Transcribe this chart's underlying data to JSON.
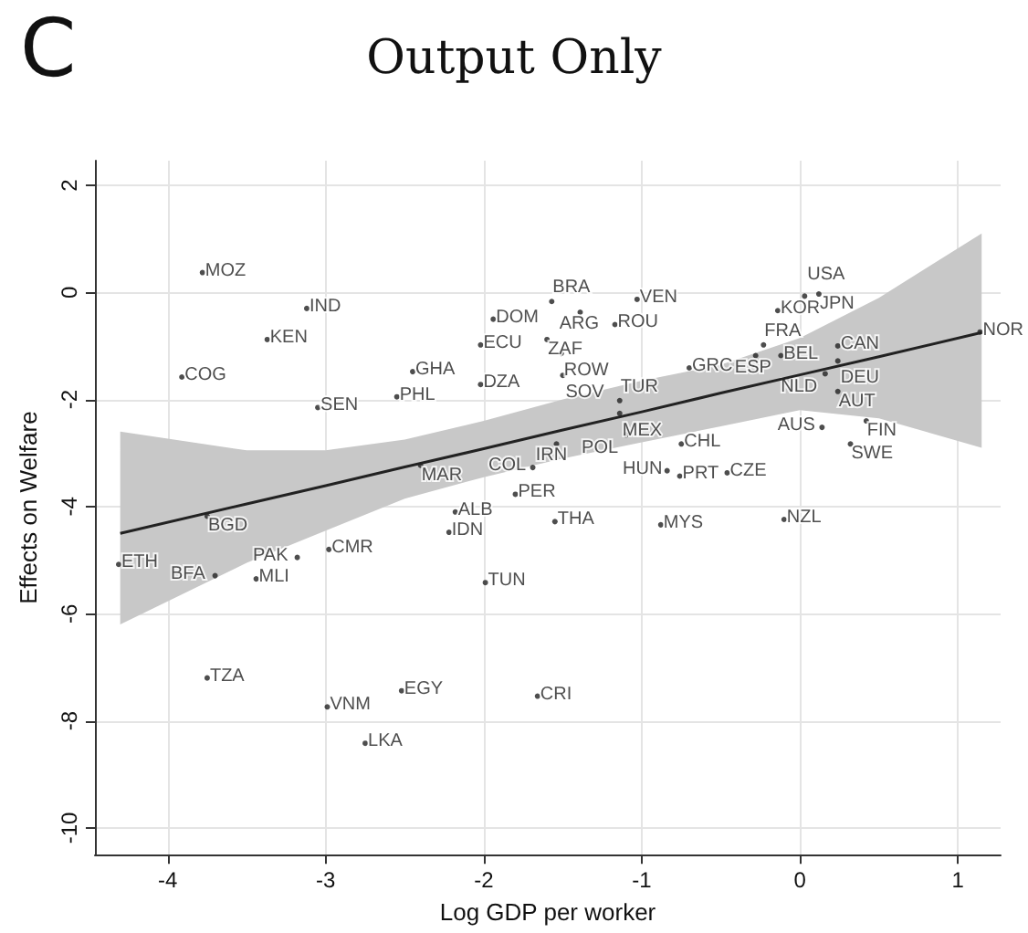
{
  "chart_data": {
    "type": "scatter",
    "title": "Output Only",
    "xlabel": "Log GDP per worker",
    "ylabel": "Effects on Welfare",
    "annotations": [
      "C"
    ],
    "xlim": [
      -4.46,
      1.27
    ],
    "xticks": [
      -4,
      -3,
      -2,
      -1,
      0,
      1
    ],
    "ylim": [
      -10.5,
      2.46
    ],
    "yticks": [
      -10,
      -8,
      -6,
      -4,
      -2,
      0,
      2
    ],
    "grid": true,
    "marker": "circle",
    "series": [
      {
        "type": "scatter",
        "color": "#222222",
        "x": [
          -3.78,
          -3.12,
          -3.37,
          -3.91,
          -3.05,
          -2.45,
          -2.55,
          -2.02,
          -2.02,
          -1.94,
          -1.57,
          -1.39,
          -1.17,
          -1.03,
          -1.6,
          -1.51,
          -1.5,
          -0.7,
          -0.14,
          0.03,
          0.12,
          -0.23,
          -0.28,
          -0.12,
          0.24,
          0.24,
          0.16,
          0.24,
          1.14,
          0.14,
          0.42,
          0.32,
          -0.75,
          -0.84,
          -0.46,
          -0.76,
          -0.88,
          -0.1,
          -1.55,
          -1.8,
          -1.14,
          -1.14,
          -1.1,
          -1.54,
          -1.69,
          -2.4,
          -2.18,
          -2.22,
          -3.18,
          -2.98,
          -3.75,
          -4.31,
          -3.7,
          -3.44,
          -1.99,
          -3.75,
          -2.99,
          -2.52,
          -2.75,
          -1.66
        ],
        "values": [
          0.37,
          -0.3,
          -0.88,
          -1.58,
          -2.15,
          -1.48,
          -1.95,
          -1.72,
          -0.98,
          -0.5,
          -0.17,
          -0.37,
          -0.6,
          -0.13,
          -0.88,
          -1.14,
          -1.55,
          -1.41,
          -0.34,
          -0.07,
          -0.03,
          -0.98,
          -1.18,
          -1.18,
          -1.0,
          -1.28,
          -1.52,
          -1.85,
          -0.74,
          -2.52,
          -2.4,
          -2.83,
          -2.83,
          -3.33,
          -3.37,
          -3.43,
          -4.34,
          -4.24,
          -4.28,
          -3.77,
          -2.02,
          -2.26,
          -2.66,
          -2.83,
          -3.27,
          -3.23,
          -4.1,
          -4.48,
          -4.95,
          -4.8,
          -4.18,
          -5.08,
          -5.29,
          -5.35,
          -5.42,
          -7.2,
          -7.74,
          -7.44,
          -8.42,
          -7.54
        ],
        "value_labels": [
          "MOZ",
          "IND",
          "KEN",
          "COG",
          "SEN",
          "GHA",
          "PHL",
          "DZA",
          "ECU",
          "DOM",
          "BRA",
          "ARG",
          "ROU",
          "VEN",
          "ZAF",
          "ROW",
          "SOV",
          "GRC",
          "KOR",
          "USA",
          "JPN",
          "FRA",
          "ESP",
          "BEL",
          "CAN",
          "DEU",
          "NLD",
          "AUT",
          "NOR",
          "AUS",
          "FIN",
          "SWE",
          "CHL",
          "HUN",
          "CZE",
          "PRT",
          "MYS",
          "NZL",
          "THA",
          "PER",
          "TUR",
          "MEX",
          "POL",
          "IRN",
          "COL",
          "MAR",
          "ALB",
          "IDN",
          "PAK",
          "CMR",
          "BGD",
          "ETH",
          "BFA",
          "MLI",
          "TUN",
          "TZA",
          "VNM",
          "EGY",
          "LKA",
          "CRI"
        ]
      },
      {
        "type": "line",
        "color": "#222222",
        "marker": "none",
        "x": [
          -4.3,
          -3.5,
          -3,
          -2.5,
          -2,
          -1.5,
          -1,
          -0.5,
          0,
          0.5,
          1.15
        ],
        "values": [
          -4.5,
          -3.95,
          -3.61,
          -3.26,
          -2.92,
          -2.57,
          -2.23,
          -1.88,
          -1.54,
          -1.2,
          -0.75
        ],
        "lower": [
          -6.2,
          -5.05,
          -4.45,
          -3.85,
          -3.45,
          -3.1,
          -2.8,
          -2.5,
          -2.2,
          -2.35,
          -2.9
        ],
        "upper": [
          -2.6,
          -2.95,
          -2.95,
          -2.75,
          -2.4,
          -2.0,
          -1.65,
          -1.35,
          -0.85,
          -0.1,
          1.1
        ]
      }
    ]
  }
}
